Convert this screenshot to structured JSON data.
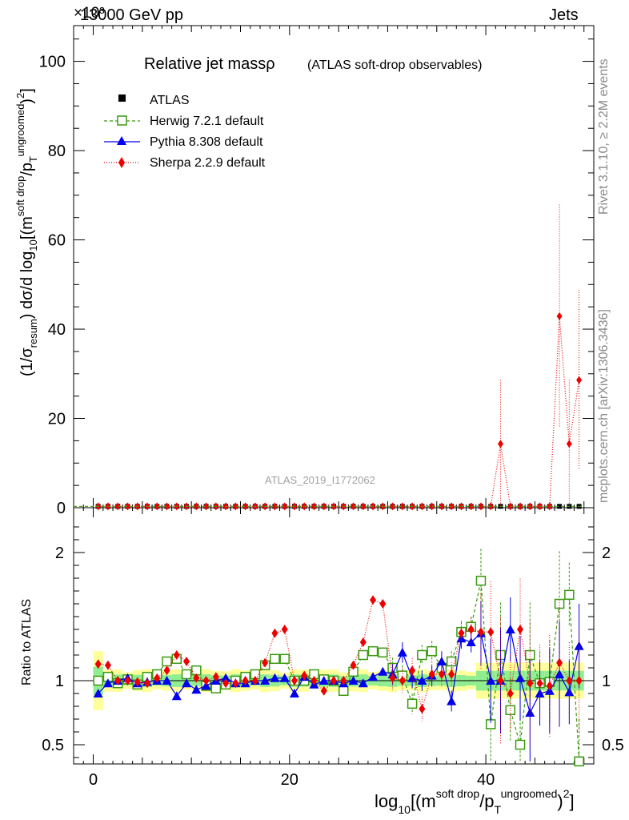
{
  "header": {
    "left": "13000 GeV pp",
    "right": "Jets",
    "scale_label": "×10³"
  },
  "side_text": {
    "rivet": "Rivet 3.1.10, ≥ 2.2M events",
    "mcplots": "mcplots.cern.ch [arXiv:1306.3436]"
  },
  "chart_data": {
    "type": "scatter",
    "title": "Relative jet massρ",
    "title_sub": "(ATLAS soft-drop observables)",
    "watermark": "ATLAS_2019_I1772062",
    "ylabel": "(1/σ_resum) dσ/d log10[(m^soft drop/pT^ungroomed)^2]",
    "ylabel_parts": {
      "a": "(1/σ",
      "a_sub": "resum",
      "b": ") dσ/d log",
      "b_sub": "10",
      "c": "[(m",
      "c_sup": "soft drop",
      "d": "/p",
      "d_sub": "T",
      "d_sup": "ungroomed",
      "e": ")",
      "e_sup": "2",
      "f": "]"
    },
    "xlabel_parts": {
      "a": "log",
      "a_sub": "10",
      "b": "[(m",
      "b_sup": "soft drop",
      "c": "/p",
      "c_sub": "T",
      "c_sup": "ungroomed",
      "d": ")",
      "d_sup": "2",
      "e": "]"
    },
    "ratio_ylabel": "Ratio to ATLAS",
    "xlim": [
      -2,
      51
    ],
    "ylim": [
      0,
      108
    ],
    "ratio_ylim": [
      0.35,
      2.35
    ],
    "xticks": [
      0,
      20,
      40
    ],
    "yticks": [
      0,
      20,
      40,
      60,
      80,
      100
    ],
    "ratio_yticks": [
      0.5,
      1,
      2
    ],
    "legend": {
      "position": "top-left",
      "entries": [
        "ATLAS",
        "Herwig 7.2.1 default",
        "Pythia 8.308 default",
        "Sherpa 2.2.9 default"
      ]
    },
    "colors": {
      "data": "#000000",
      "herwig": "#3a9a0e",
      "pythia": "#0000ee",
      "sherpa": "#ee0000",
      "band_inner": "#90ee90",
      "band_outer": "#ffff99"
    },
    "main_series": {
      "x": [
        0.5,
        1.5,
        2.5,
        3.5,
        4.5,
        5.5,
        6.5,
        7.5,
        8.5,
        9.5,
        10.5,
        11.5,
        12.5,
        13.5,
        14.5,
        15.5,
        16.5,
        17.5,
        18.5,
        19.5,
        20.5,
        21.5,
        22.5,
        23.5,
        24.5,
        25.5,
        26.5,
        27.5,
        28.5,
        29.5,
        30.5,
        31.5,
        32.5,
        33.5,
        34.5,
        35.5,
        36.5,
        37.5,
        38.5,
        39.5,
        40.5,
        41.5,
        42.5,
        43.5,
        44.5,
        45.5,
        46.5,
        47.5,
        48.5,
        49.5
      ],
      "sherpa": [
        0.3,
        0.3,
        0.3,
        0.3,
        0.3,
        0.3,
        0.3,
        0.3,
        0.3,
        0.3,
        0.3,
        0.3,
        0.3,
        0.3,
        0.3,
        0.3,
        0.3,
        0.3,
        0.3,
        0.3,
        0.3,
        0.3,
        0.3,
        0.3,
        0.3,
        0.3,
        0.3,
        0.3,
        0.3,
        0.3,
        0.3,
        0.3,
        0.3,
        0.3,
        0.3,
        0.3,
        0.3,
        0.3,
        0.3,
        0.3,
        0.3,
        14.3,
        0.3,
        0.3,
        0.3,
        0.3,
        0.3,
        42.9,
        14.3,
        28.6
      ],
      "sherpa_err": [
        0,
        0,
        0,
        0,
        0,
        0,
        0,
        0,
        0,
        0,
        0,
        0,
        0,
        0,
        0,
        0,
        0,
        0,
        0,
        0,
        0,
        0,
        0,
        0,
        0,
        0,
        0,
        0,
        0,
        0,
        0,
        0,
        0,
        0,
        0,
        0,
        0,
        0,
        0,
        0,
        0,
        14.3,
        0,
        0,
        0,
        0,
        0,
        25,
        14.3,
        20.2
      ]
    },
    "ratio_series": {
      "x": [
        0.5,
        1.5,
        2.5,
        3.5,
        4.5,
        5.5,
        6.5,
        7.5,
        8.5,
        9.5,
        10.5,
        11.5,
        12.5,
        13.5,
        14.5,
        15.5,
        16.5,
        17.5,
        18.5,
        19.5,
        20.5,
        21.5,
        22.5,
        23.5,
        24.5,
        25.5,
        26.5,
        27.5,
        28.5,
        29.5,
        30.5,
        31.5,
        32.5,
        33.5,
        34.5,
        35.5,
        36.5,
        37.5,
        38.5,
        39.5,
        40.5,
        41.5,
        42.5,
        43.5,
        44.5,
        45.5,
        46.5,
        47.5,
        48.5,
        49.5
      ],
      "herwig": [
        1.0,
        1.03,
        0.98,
        1.01,
        0.97,
        1.03,
        1.05,
        1.15,
        1.17,
        1.05,
        1.08,
        0.96,
        0.94,
        0.97,
        1.0,
        1.03,
        1.05,
        1.12,
        1.17,
        1.17,
        1.0,
        1.0,
        1.05,
        1.01,
        1.0,
        0.92,
        1.07,
        1.2,
        1.23,
        1.22,
        1.1,
        1.04,
        0.82,
        1.2,
        1.23,
        1.1,
        1.15,
        1.38,
        1.42,
        1.78,
        0.66,
        1.2,
        0.77,
        0.5,
        1.2,
        0.98,
        0.99,
        1.6,
        1.67,
        0.35
      ],
      "pythia": [
        0.9,
        0.98,
        1.0,
        1.02,
        0.98,
        0.99,
        1.0,
        1.0,
        0.88,
        0.98,
        0.93,
        0.96,
        1.0,
        1.02,
        0.98,
        0.98,
        1.0,
        1.0,
        1.02,
        1.02,
        0.9,
        1.03,
        0.97,
        1.0,
        1.0,
        0.98,
        1.0,
        0.98,
        1.03,
        1.07,
        1.05,
        1.22,
        1.02,
        1.0,
        1.04,
        1.15,
        0.84,
        1.33,
        1.3,
        1.37,
        1.0,
        1.0,
        1.4,
        1.02,
        0.75,
        0.9,
        0.92,
        1.05,
        0.91,
        1.27
      ],
      "sherpa": [
        1.13,
        1.12,
        1.0,
        1.0,
        0.99,
        0.98,
        1.02,
        1.08,
        1.2,
        1.15,
        1.02,
        1.0,
        1.03,
        0.98,
        0.98,
        1.0,
        1.0,
        1.14,
        1.37,
        1.4,
        1.0,
        1.04,
        1.0,
        0.92,
        1.0,
        1.0,
        1.12,
        1.3,
        1.63,
        1.6,
        1.02,
        1.0,
        1.08,
        0.78,
        1.05,
        1.05,
        1.05,
        1.37,
        1.4,
        1.38,
        1.38,
        1.0,
        0.9,
        1.4,
        0.98,
        0.98,
        0.96,
        1.14,
        1.0,
        1.0
      ]
    }
  }
}
